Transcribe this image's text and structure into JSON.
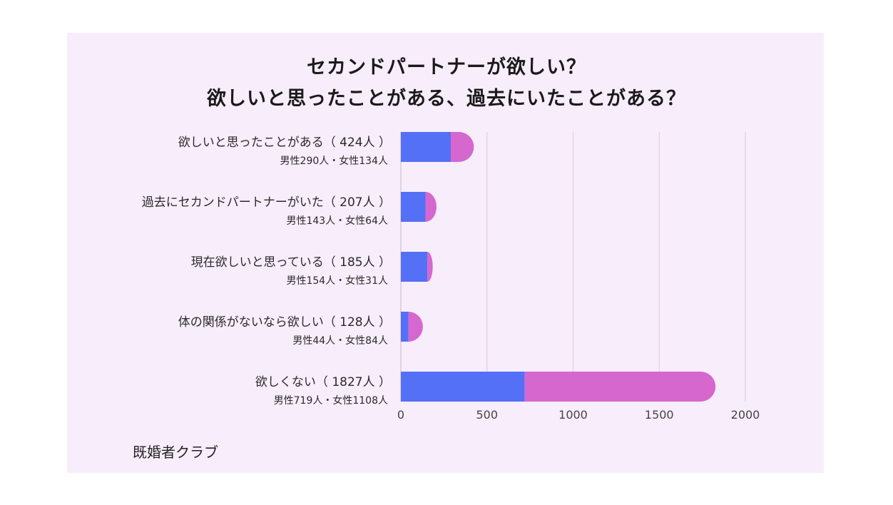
{
  "chart_data": {
    "type": "bar",
    "orientation": "horizontal",
    "stacked": true,
    "title_lines": [
      "セカンドパートナーが欲しい？",
      "欲しいと思ったことがある、過去にいたことがある？"
    ],
    "categories": [
      {
        "label": "欲しいと思ったことがある（ 424人 ）",
        "sub": "男性290人・女性134人"
      },
      {
        "label": "過去にセカンドパートナーがいた（ 207人 ）",
        "sub": "男性143人・女性64人"
      },
      {
        "label": "現在欲しいと思っている（ 185人 ）",
        "sub": "男性154人・女性31人"
      },
      {
        "label": "体の関係がないなら欲しい（ 128人 ）",
        "sub": "男性44人・女性84人"
      },
      {
        "label": "欲しくない（ 1827人 ）",
        "sub": "男性719人・女性1108人"
      }
    ],
    "series": [
      {
        "values": [
          290,
          143,
          154,
          44,
          719
        ],
        "color": "#5470f6"
      },
      {
        "values": [
          134,
          64,
          31,
          84,
          1108
        ],
        "color": "#d567cf"
      }
    ],
    "xlim": [
      0,
      2000
    ],
    "xticks": [
      "0",
      "500",
      "1000",
      "1500",
      "2000"
    ],
    "grid": true,
    "background": "#f8edfb"
  },
  "brand": "既婚者クラブ"
}
